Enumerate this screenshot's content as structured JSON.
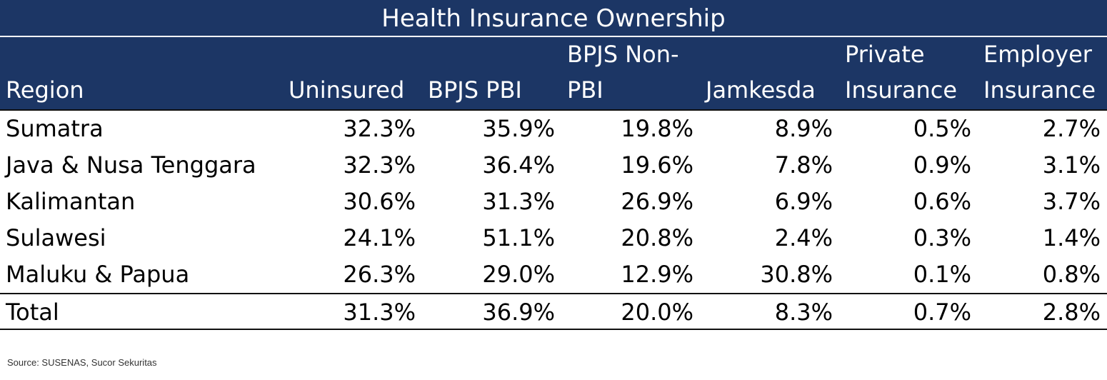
{
  "chart_data": {
    "type": "table",
    "title": "Health Insurance Ownership",
    "columns": [
      "Region",
      "Uninsured",
      "BPJS PBI",
      "BPJS Non-\nPBI",
      "Jamkesda",
      "Private\nInsurance",
      "Employer\nInsurance"
    ],
    "rows": [
      {
        "region": "Sumatra",
        "values": [
          "32.3%",
          "35.9%",
          "19.8%",
          "8.9%",
          "0.5%",
          "2.7%"
        ]
      },
      {
        "region": "Java & Nusa Tenggara",
        "values": [
          "32.3%",
          "36.4%",
          "19.6%",
          "7.8%",
          "0.9%",
          "3.1%"
        ]
      },
      {
        "region": "Kalimantan",
        "values": [
          "30.6%",
          "31.3%",
          "26.9%",
          "6.9%",
          "0.6%",
          "3.7%"
        ]
      },
      {
        "region": "Sulawesi",
        "values": [
          "24.1%",
          "51.1%",
          "20.8%",
          "2.4%",
          "0.3%",
          "1.4%"
        ]
      },
      {
        "region": "Maluku & Papua",
        "values": [
          "26.3%",
          "29.0%",
          "12.9%",
          "30.8%",
          "0.1%",
          "0.8%"
        ]
      }
    ],
    "total": {
      "region": "Total",
      "values": [
        "31.3%",
        "36.9%",
        "20.0%",
        "8.3%",
        "0.7%",
        "2.8%"
      ]
    }
  },
  "source": "Source: SUSENAS, Sucor Sekuritas",
  "colors": {
    "header_bg": "#1c3665",
    "header_text": "#ffffff",
    "body_text": "#000000"
  }
}
